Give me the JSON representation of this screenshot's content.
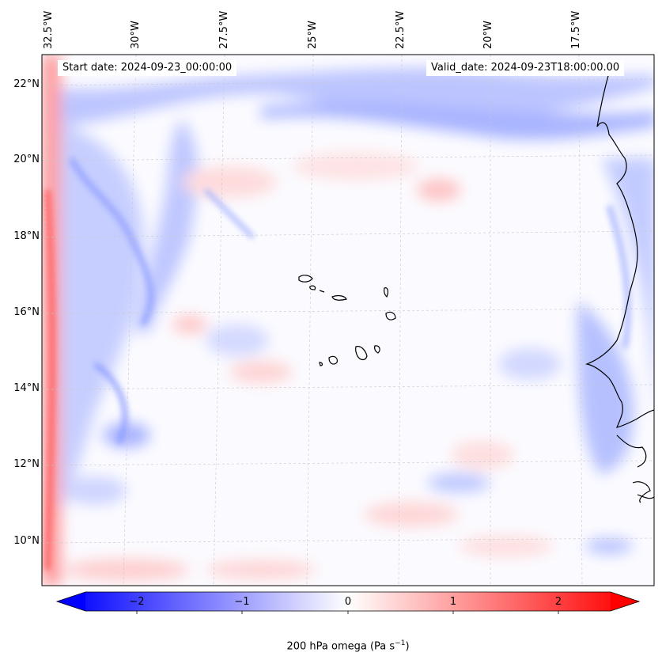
{
  "map": {
    "start_date_label": "Start date: 2024-09-23_00:00:00",
    "valid_date_label": "Valid_date: 2024-09-23T18:00:00.00",
    "lon_ticks": [
      "32.5°W",
      "30°W",
      "27.5°W",
      "25°W",
      "22.5°W",
      "20°W",
      "17.5°W"
    ],
    "lat_ticks": [
      "22°N",
      "20°N",
      "18°N",
      "16°N",
      "14°N",
      "12°N",
      "10°N"
    ],
    "extent": {
      "lon_min": -33.0,
      "lon_max": -15.3,
      "lat_min": 8.8,
      "lat_max": 22.8
    },
    "variable": "200 hPa omega",
    "colormap": "bwr"
  },
  "colorbar": {
    "ticks": [
      "−2",
      "−1",
      "0",
      "1",
      "2"
    ],
    "tick_values": [
      -2,
      -1,
      0,
      1,
      2
    ],
    "range": [
      -2.5,
      2.5
    ],
    "title_main": "200 hPa omega (Pa s",
    "title_exp": "−1",
    "title_end": ")",
    "low_color": "#0000ff",
    "mid_color": "#ffffff",
    "high_color": "#ff0000"
  }
}
